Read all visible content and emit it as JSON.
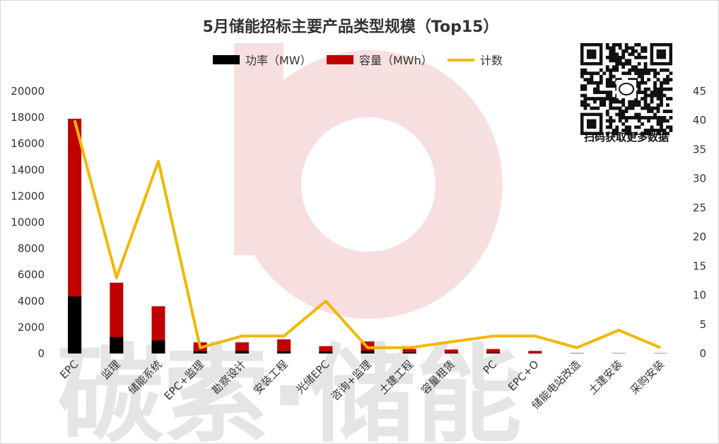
{
  "chart_data": {
    "type": "bar+line",
    "title": "5月储能招标主要产品类型规模（Top15）",
    "categories": [
      "EPC",
      "监理",
      "储能系统",
      "EPC+监理",
      "勘察设计",
      "安装工程",
      "光储EPC",
      "咨询+监理",
      "土建工程",
      "容量租赁",
      "PC",
      "EPC+O",
      "储能电站改造",
      "土建安装",
      "采购安装"
    ],
    "series": [
      {
        "name": "功率（MW）",
        "type": "bar",
        "axis": "left",
        "color": "#000000",
        "values": [
          4350,
          1250,
          1000,
          180,
          200,
          170,
          150,
          200,
          80,
          40,
          60,
          20,
          10,
          10,
          10
        ]
      },
      {
        "name": "容量（MWh）",
        "type": "bar",
        "axis": "left",
        "color": "#c00000",
        "values": [
          17900,
          5400,
          3600,
          850,
          850,
          1080,
          560,
          920,
          350,
          300,
          340,
          200,
          30,
          20,
          20
        ]
      },
      {
        "name": "计数",
        "type": "line",
        "axis": "right",
        "color": "#f2b705",
        "values": [
          40,
          13,
          33,
          1,
          3,
          3,
          9,
          1,
          1,
          2,
          3,
          3,
          1,
          4,
          1
        ]
      }
    ],
    "y_left": {
      "min": 0,
      "max": 20000,
      "ticks": [
        0,
        2000,
        4000,
        6000,
        8000,
        10000,
        12000,
        14000,
        16000,
        18000,
        20000
      ]
    },
    "y_right": {
      "min": 0,
      "max": 45,
      "ticks": [
        0,
        5,
        10,
        15,
        20,
        25,
        30,
        35,
        40,
        45
      ]
    },
    "legend_placement": "top",
    "grid": false,
    "bar_stacking": "overlay"
  },
  "qr": {
    "caption": "扫码获取更多数据"
  },
  "watermark": {
    "text": "碳索·储能"
  }
}
